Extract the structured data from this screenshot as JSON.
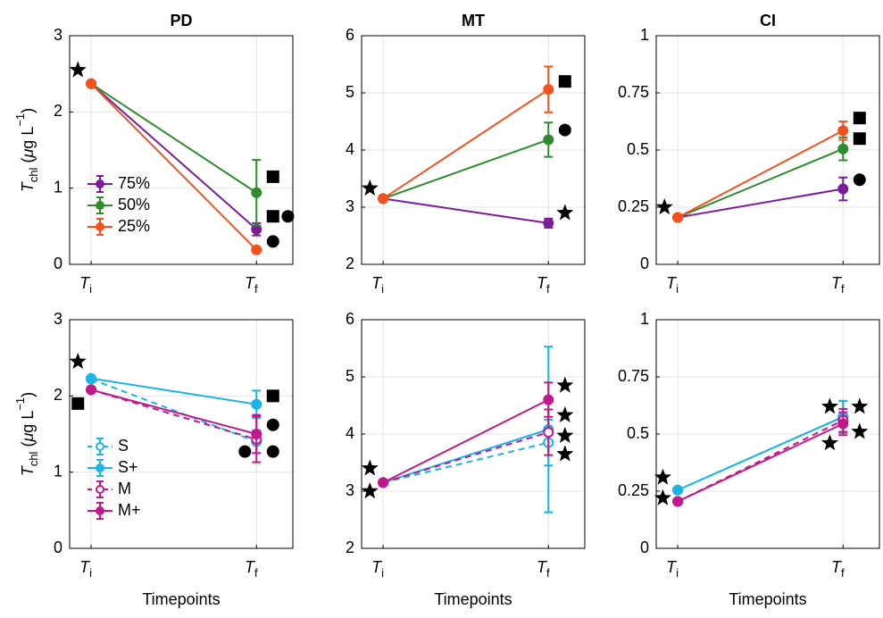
{
  "chart_data": [
    {
      "type": "line",
      "title": "PD",
      "ylabel_parts": [
        "T",
        "chl",
        " (",
        "μ",
        "g L",
        "−1",
        ")"
      ],
      "x": [
        1,
        2
      ],
      "xlim": [
        0.87,
        2.22
      ],
      "xticks": [
        {
          "value": 1,
          "label": "T",
          "sub": "i"
        },
        {
          "value": 2,
          "label": "T",
          "sub": "f"
        }
      ],
      "ylim": [
        0,
        3
      ],
      "yticks": [
        0,
        1,
        2,
        3
      ],
      "grid": true,
      "legend": "lower left",
      "series": [
        {
          "name": "75%",
          "color": "#7b1c98",
          "line_style": "solid",
          "marker_fill": "filled",
          "values": [
            2.37,
            0.46
          ],
          "errors": [
            null,
            0.08
          ]
        },
        {
          "name": "50%",
          "color": "#2e8b2e",
          "line_style": "solid",
          "marker_fill": "filled",
          "values": [
            2.37,
            0.94
          ],
          "errors": [
            null,
            0.43
          ]
        },
        {
          "name": "25%",
          "color": "#f4511e",
          "line_style": "solid",
          "marker_fill": "filled",
          "values": [
            2.37,
            0.19
          ],
          "errors": [
            null,
            0.03
          ]
        }
      ],
      "markers": [
        {
          "shape": "star",
          "x": 0.92,
          "y": 2.55
        },
        {
          "shape": "square",
          "x": 2.1,
          "y": 1.15
        },
        {
          "shape": "square",
          "x": 2.1,
          "y": 0.63
        },
        {
          "shape": "circle",
          "x": 2.19,
          "y": 0.63
        },
        {
          "shape": "circle",
          "x": 2.1,
          "y": 0.3
        }
      ]
    },
    {
      "type": "line",
      "title": "MT",
      "x": [
        1,
        2
      ],
      "xlim": [
        0.87,
        2.22
      ],
      "xticks": [
        {
          "value": 1,
          "label": "T",
          "sub": "i"
        },
        {
          "value": 2,
          "label": "T",
          "sub": "f"
        }
      ],
      "ylim": [
        2,
        6
      ],
      "yticks": [
        2,
        3,
        4,
        5,
        6
      ],
      "grid": true,
      "series": [
        {
          "color": "#7b1c98",
          "line_style": "solid",
          "marker_fill": "filled",
          "values": [
            3.15,
            2.72
          ],
          "errors": [
            null,
            0.08
          ]
        },
        {
          "color": "#2e8b2e",
          "line_style": "solid",
          "marker_fill": "filled",
          "values": [
            3.15,
            4.18
          ],
          "errors": [
            null,
            0.3
          ]
        },
        {
          "color": "#f4511e",
          "line_style": "solid",
          "marker_fill": "filled",
          "values": [
            3.15,
            5.06
          ],
          "errors": [
            null,
            0.4
          ]
        }
      ],
      "markers": [
        {
          "shape": "star",
          "x": 0.92,
          "y": 3.33
        },
        {
          "shape": "square",
          "x": 2.1,
          "y": 5.2
        },
        {
          "shape": "circle",
          "x": 2.1,
          "y": 4.35
        },
        {
          "shape": "star",
          "x": 2.1,
          "y": 2.9
        }
      ]
    },
    {
      "type": "line",
      "title": "CI",
      "x": [
        1,
        2
      ],
      "xlim": [
        0.87,
        2.22
      ],
      "xticks": [
        {
          "value": 1,
          "label": "T",
          "sub": "i"
        },
        {
          "value": 2,
          "label": "T",
          "sub": "f"
        }
      ],
      "ylim": [
        0,
        1
      ],
      "yticks": [
        0,
        0.25,
        0.5,
        0.75,
        1
      ],
      "grid": true,
      "series": [
        {
          "color": "#7b1c98",
          "line_style": "solid",
          "marker_fill": "filled",
          "values": [
            0.205,
            0.33
          ],
          "errors": [
            null,
            0.05
          ]
        },
        {
          "color": "#2e8b2e",
          "line_style": "solid",
          "marker_fill": "filled",
          "values": [
            0.205,
            0.505
          ],
          "errors": [
            null,
            0.05
          ]
        },
        {
          "color": "#f4511e",
          "line_style": "solid",
          "marker_fill": "filled",
          "values": [
            0.205,
            0.585
          ],
          "errors": [
            null,
            0.04
          ]
        }
      ],
      "markers": [
        {
          "shape": "star",
          "x": 0.92,
          "y": 0.25
        },
        {
          "shape": "square",
          "x": 2.1,
          "y": 0.64
        },
        {
          "shape": "square",
          "x": 2.1,
          "y": 0.55
        },
        {
          "shape": "circle",
          "x": 2.1,
          "y": 0.37
        }
      ]
    },
    {
      "type": "line",
      "xlabel": "Timepoints",
      "ylabel_parts": [
        "T",
        "chl",
        " (",
        "μ",
        "g L",
        "−1",
        ")"
      ],
      "x": [
        1,
        2
      ],
      "xlim": [
        0.87,
        2.22
      ],
      "xticks": [
        {
          "value": 1,
          "label": "T",
          "sub": "i"
        },
        {
          "value": 2,
          "label": "T",
          "sub": "f"
        }
      ],
      "ylim": [
        0,
        3
      ],
      "yticks": [
        0,
        1,
        2,
        3
      ],
      "grid": true,
      "legend": "lower left",
      "series": [
        {
          "name": "S",
          "color": "#1ab4e8",
          "line_style": "dashed",
          "marker_fill": "open",
          "values": [
            2.22,
            1.4
          ],
          "errors": [
            null,
            0.15
          ]
        },
        {
          "name": "S+",
          "color": "#1ab4e8",
          "line_style": "solid",
          "marker_fill": "filled",
          "values": [
            2.23,
            1.89
          ],
          "errors": [
            null,
            0.18
          ]
        },
        {
          "name": "M",
          "color": "#c0198c",
          "line_style": "dashed",
          "marker_fill": "open",
          "values": [
            2.08,
            1.43
          ],
          "errors": [
            null,
            0.3
          ]
        },
        {
          "name": "M+",
          "color": "#c0198c",
          "line_style": "solid",
          "marker_fill": "filled",
          "values": [
            2.08,
            1.5
          ],
          "errors": [
            null,
            0.25
          ]
        }
      ],
      "markers": [
        {
          "shape": "star",
          "x": 0.92,
          "y": 2.45
        },
        {
          "shape": "square",
          "x": 0.92,
          "y": 1.9
        },
        {
          "shape": "square",
          "x": 2.1,
          "y": 2.0
        },
        {
          "shape": "circle",
          "x": 2.1,
          "y": 1.62
        },
        {
          "shape": "circle",
          "x": 1.93,
          "y": 1.27
        },
        {
          "shape": "circle",
          "x": 2.1,
          "y": 1.27
        }
      ]
    },
    {
      "type": "line",
      "xlabel": "Timepoints",
      "x": [
        1,
        2
      ],
      "xlim": [
        0.87,
        2.22
      ],
      "xticks": [
        {
          "value": 1,
          "label": "T",
          "sub": "i"
        },
        {
          "value": 2,
          "label": "T",
          "sub": "f"
        }
      ],
      "ylim": [
        2,
        6
      ],
      "yticks": [
        2,
        3,
        4,
        5,
        6
      ],
      "grid": true,
      "series": [
        {
          "color": "#1ab4e8",
          "line_style": "dashed",
          "marker_fill": "open",
          "values": [
            3.15,
            3.85
          ],
          "errors": [
            null,
            0.4
          ]
        },
        {
          "color": "#1ab4e8",
          "line_style": "solid",
          "marker_fill": "filled",
          "values": [
            3.15,
            4.08
          ],
          "errors": [
            null,
            1.45
          ]
        },
        {
          "color": "#c0198c",
          "line_style": "dashed",
          "marker_fill": "open",
          "values": [
            3.15,
            4.03
          ],
          "errors": [
            null,
            0.4
          ]
        },
        {
          "color": "#c0198c",
          "line_style": "solid",
          "marker_fill": "filled",
          "values": [
            3.15,
            4.6
          ],
          "errors": [
            null,
            0.3
          ]
        }
      ],
      "markers": [
        {
          "shape": "star",
          "x": 0.92,
          "y": 3.4
        },
        {
          "shape": "star",
          "x": 0.92,
          "y": 3.0
        },
        {
          "shape": "star",
          "x": 2.1,
          "y": 4.85
        },
        {
          "shape": "star",
          "x": 2.1,
          "y": 4.33
        },
        {
          "shape": "star",
          "x": 2.1,
          "y": 3.97
        },
        {
          "shape": "star",
          "x": 2.1,
          "y": 3.65
        }
      ]
    },
    {
      "type": "line",
      "xlabel": "Timepoints",
      "x": [
        1,
        2
      ],
      "xlim": [
        0.87,
        2.22
      ],
      "xticks": [
        {
          "value": 1,
          "label": "T",
          "sub": "i"
        },
        {
          "value": 2,
          "label": "T",
          "sub": "f"
        }
      ],
      "ylim": [
        0,
        1
      ],
      "yticks": [
        0,
        0.25,
        0.5,
        0.75,
        1
      ],
      "grid": true,
      "series": [
        {
          "color": "#1ab4e8",
          "line_style": "dashed",
          "marker_fill": "open",
          "values": [
            0.255,
            0.575
          ],
          "errors": [
            null,
            0.07
          ]
        },
        {
          "color": "#1ab4e8",
          "line_style": "solid",
          "marker_fill": "filled",
          "values": [
            0.255,
            0.575
          ],
          "errors": [
            null,
            0.07
          ]
        },
        {
          "color": "#c0198c",
          "line_style": "dashed",
          "marker_fill": "open",
          "values": [
            0.205,
            0.56
          ],
          "errors": [
            null,
            0.05
          ]
        },
        {
          "color": "#c0198c",
          "line_style": "solid",
          "marker_fill": "filled",
          "values": [
            0.205,
            0.545
          ],
          "errors": [
            null,
            0.05
          ]
        }
      ],
      "markers": [
        {
          "shape": "star",
          "x": 0.91,
          "y": 0.31
        },
        {
          "shape": "star",
          "x": 0.91,
          "y": 0.22
        },
        {
          "shape": "star",
          "x": 1.92,
          "y": 0.62
        },
        {
          "shape": "star",
          "x": 2.1,
          "y": 0.62
        },
        {
          "shape": "star",
          "x": 1.92,
          "y": 0.46
        },
        {
          "shape": "star",
          "x": 2.1,
          "y": 0.51
        }
      ]
    }
  ]
}
